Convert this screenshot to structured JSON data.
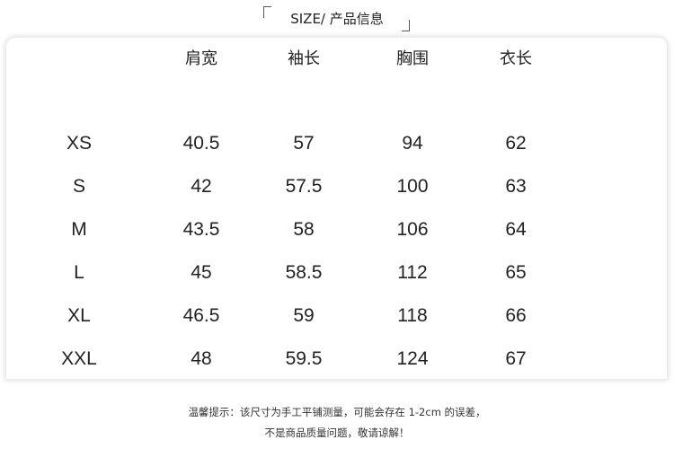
{
  "title": "SIZE/ 产品信息",
  "table": {
    "headers": [
      "",
      "肩宽",
      "袖长",
      "胸围",
      "衣长"
    ],
    "rows": [
      [
        "XS",
        "40.5",
        "57",
        "94",
        "62"
      ],
      [
        "S",
        "42",
        "57.5",
        "100",
        "63"
      ],
      [
        "M",
        "43.5",
        "58",
        "106",
        "64"
      ],
      [
        "L",
        "45",
        "58.5",
        "112",
        "65"
      ],
      [
        "XL",
        "46.5",
        "59",
        "118",
        "66"
      ],
      [
        "XXL",
        "48",
        "59.5",
        "124",
        "67"
      ]
    ]
  },
  "note": {
    "line1": "温馨提示：该尺寸为手工平铺测量，可能会存在 1-2cm 的误差，",
    "line2": "不是商品质量问题，敬请谅解！"
  }
}
